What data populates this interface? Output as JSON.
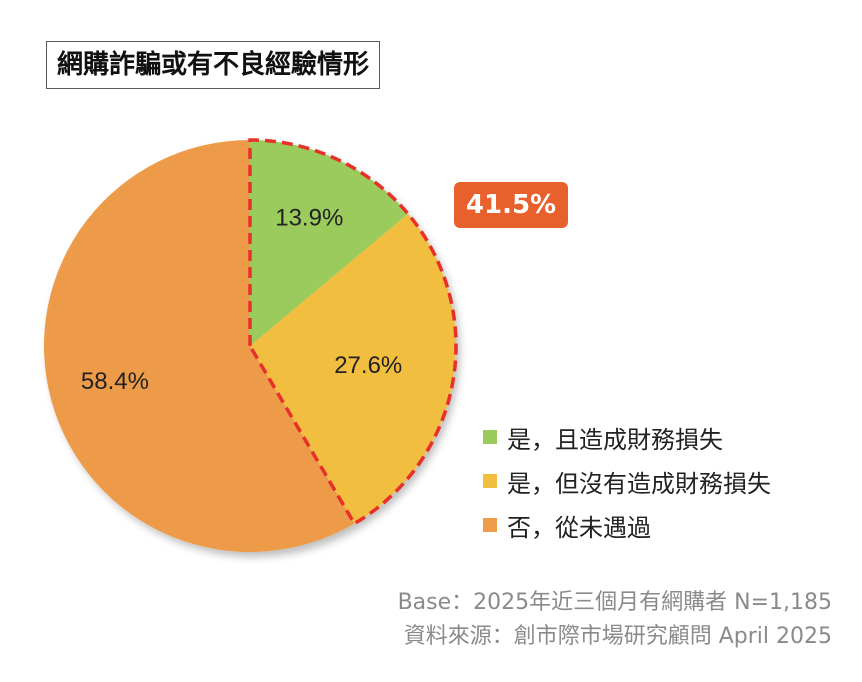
{
  "title": "網購詐騙或有不良經驗情形",
  "callout": "41.5%",
  "chart_data": {
    "type": "pie",
    "categories": [
      "是，且造成財務損失",
      "是，但沒有造成財務損失",
      "否，從未遇過"
    ],
    "values": [
      13.9,
      27.6,
      58.4
    ],
    "labels": [
      "13.9%",
      "27.6%",
      "58.4%"
    ],
    "colors": [
      "#9CCB5D",
      "#F2BE40",
      "#EE9B4A"
    ],
    "legend_position": "right",
    "highlight_color": "#E8302A"
  },
  "footer": {
    "base": "Base：2025年近三個月有網購者 N=1,185",
    "source": "資料來源：創市際市場研究顧問 April 2025"
  }
}
